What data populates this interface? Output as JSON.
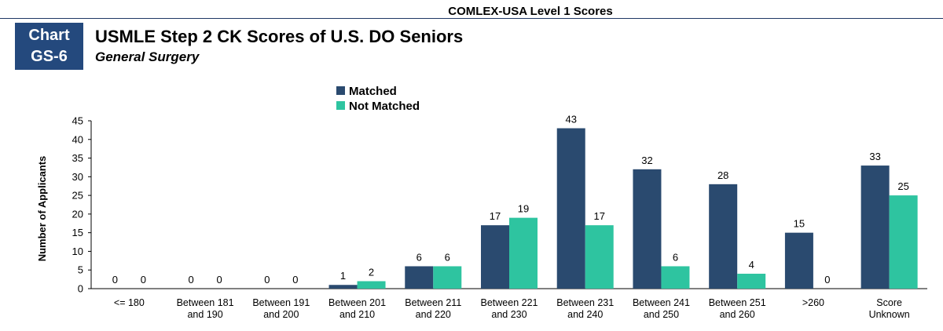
{
  "header": {
    "top_label": "COMLEX-USA Level 1 Scores",
    "badge_line1": "Chart",
    "badge_line2": "GS-6",
    "title": "USMLE Step 2 CK Scores of U.S. DO Seniors",
    "subtitle": "General Surgery"
  },
  "chart_data": {
    "type": "bar",
    "title": "USMLE Step 2 CK Scores of U.S. DO Seniors",
    "subtitle": "General Surgery",
    "xlabel": "",
    "ylabel": "Number of Applicants",
    "ylim": [
      0,
      45
    ],
    "yticks": [
      0,
      5,
      10,
      15,
      20,
      25,
      30,
      35,
      40,
      45
    ],
    "grid": false,
    "legend_position": "top-center",
    "categories": [
      [
        "<= 180"
      ],
      [
        "Between 181",
        "and 190"
      ],
      [
        "Between 191",
        "and 200"
      ],
      [
        "Between 201",
        "and 210"
      ],
      [
        "Between 211",
        "and 220"
      ],
      [
        "Between 221",
        "and 230"
      ],
      [
        "Between 231",
        "and 240"
      ],
      [
        "Between 241",
        "and 250"
      ],
      [
        "Between 251",
        "and 260"
      ],
      [
        ">260"
      ],
      [
        "Score",
        "Unknown"
      ]
    ],
    "series": [
      {
        "name": "Matched",
        "color": "#2a4a6f",
        "values": [
          0,
          0,
          0,
          1,
          6,
          17,
          43,
          32,
          28,
          15,
          33
        ]
      },
      {
        "name": "Not Matched",
        "color": "#2ec4a0",
        "values": [
          0,
          0,
          0,
          2,
          6,
          19,
          17,
          6,
          4,
          0,
          25
        ]
      }
    ]
  }
}
